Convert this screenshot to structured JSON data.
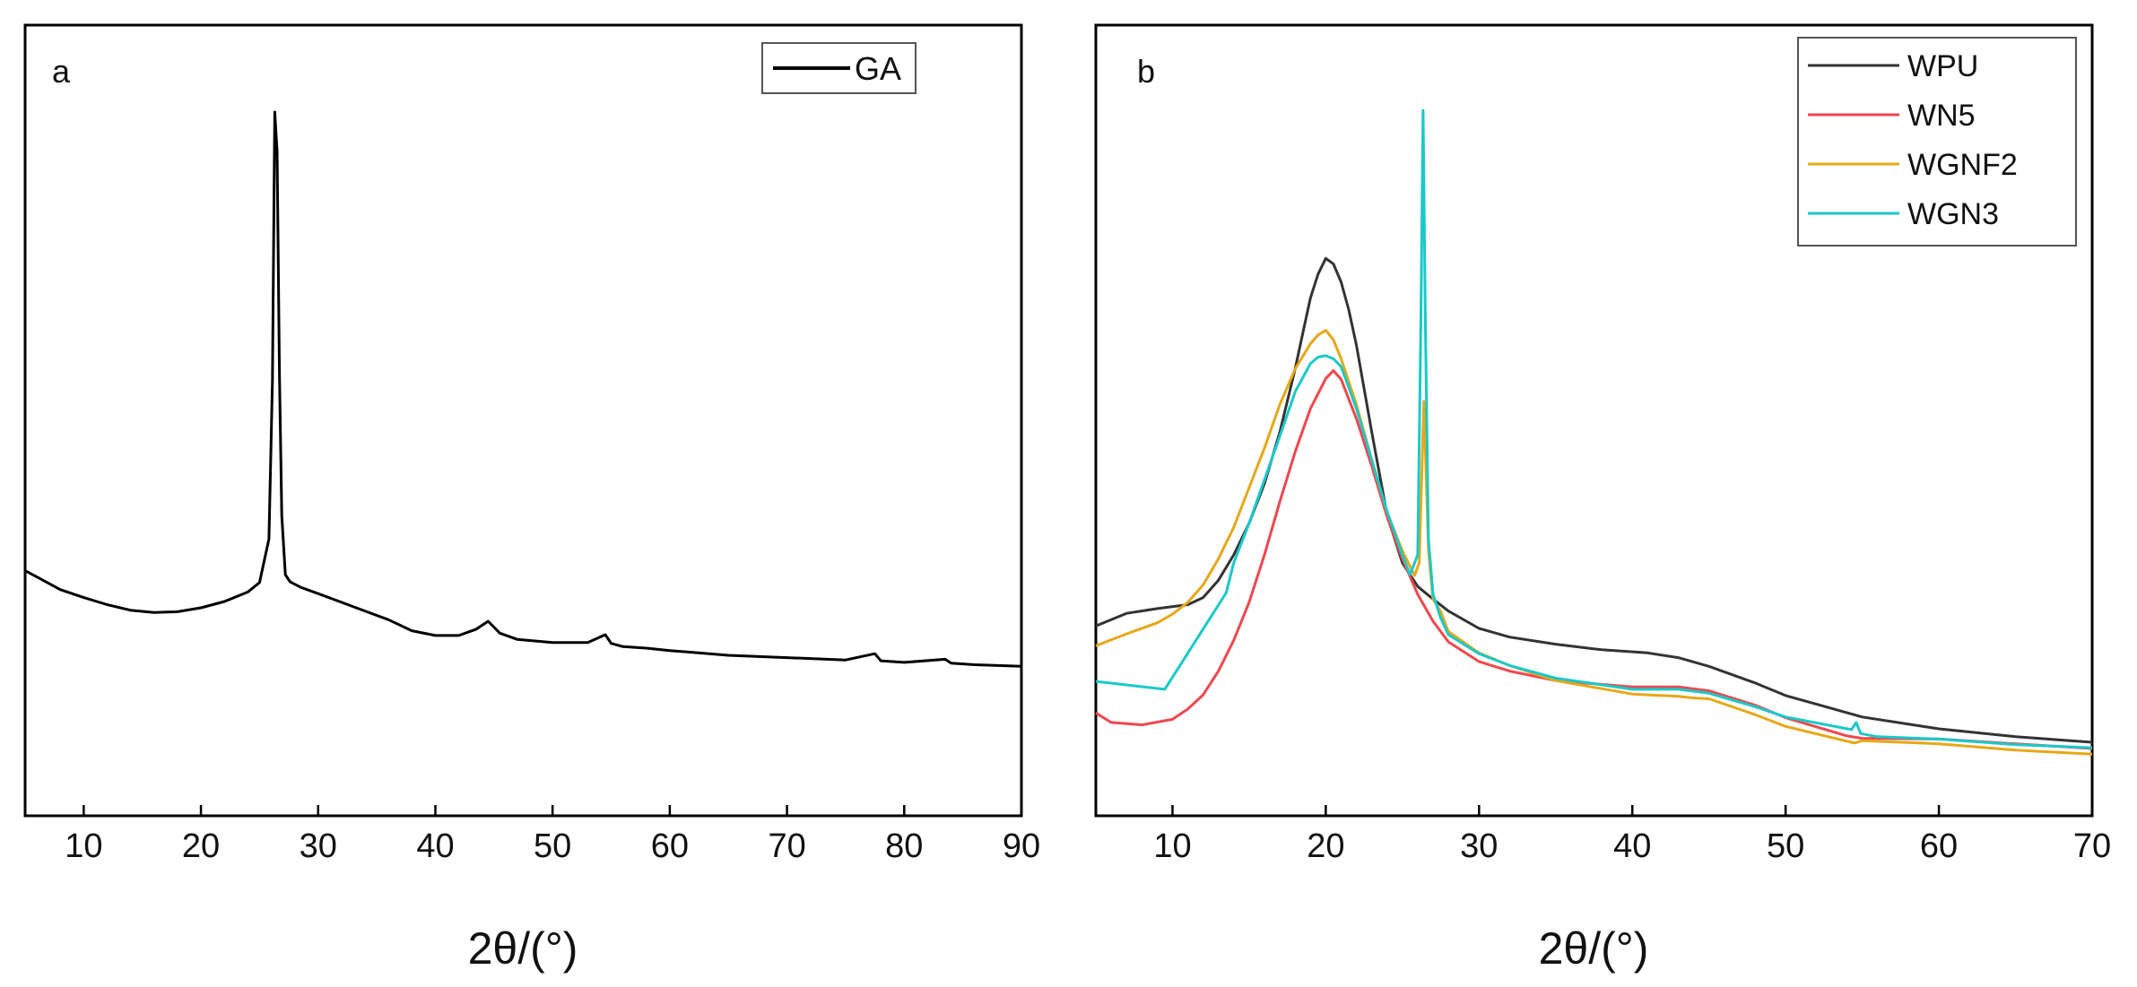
{
  "chart_data": [
    {
      "type": "line",
      "panel_label": "a",
      "title": "",
      "xlabel": "2θ/(°)",
      "ylabel": "",
      "xlim": [
        5,
        90
      ],
      "ylim": [
        0,
        100
      ],
      "xticks": [
        10,
        20,
        30,
        40,
        50,
        60,
        70,
        80,
        90
      ],
      "yticks": [],
      "grid": false,
      "legend_position": "top-right",
      "series": [
        {
          "name": "GA",
          "color": "#000000",
          "x": [
            5,
            6,
            8,
            10,
            12,
            14,
            16,
            18,
            20,
            22,
            24,
            25,
            25.8,
            26.1,
            26.3,
            26.5,
            26.7,
            26.9,
            27.2,
            27.6,
            28.5,
            30,
            32,
            34,
            36,
            38,
            40,
            42,
            43.5,
            44.5,
            45.5,
            47,
            50,
            53,
            54.5,
            55,
            56,
            58,
            60,
            65,
            70,
            75,
            77.5,
            78,
            80,
            83.5,
            84,
            86,
            88,
            90
          ],
          "y": [
            31,
            30.2,
            28.6,
            27.6,
            26.7,
            26,
            25.7,
            25.8,
            26.3,
            27.1,
            28.3,
            29.5,
            35,
            55,
            89,
            84,
            56,
            38,
            30.5,
            29.6,
            28.9,
            28.1,
            27,
            25.9,
            24.8,
            23.4,
            22.8,
            22.8,
            23.6,
            24.6,
            23.1,
            22.3,
            21.9,
            21.9,
            22.9,
            21.8,
            21.4,
            21.2,
            20.9,
            20.3,
            20,
            19.7,
            20.5,
            19.6,
            19.4,
            19.8,
            19.3,
            19.1,
            19,
            18.9
          ]
        }
      ]
    },
    {
      "type": "line",
      "panel_label": "b",
      "title": "",
      "xlabel": "2θ/(°)",
      "ylabel": "",
      "xlim": [
        5,
        70
      ],
      "ylim": [
        0,
        100
      ],
      "xticks": [
        10,
        20,
        30,
        40,
        50,
        60,
        70
      ],
      "yticks": [],
      "grid": false,
      "legend_position": "top-right",
      "series": [
        {
          "name": "WPU",
          "color": "#333333",
          "x": [
            5,
            7,
            9,
            11,
            12,
            13,
            14,
            15,
            16,
            17,
            18,
            18.5,
            19,
            19.5,
            20,
            20.5,
            21,
            21.5,
            22,
            23,
            24,
            25,
            26,
            27,
            28,
            30,
            32,
            35,
            38,
            41,
            43,
            45,
            48,
            50,
            55,
            60,
            65,
            70
          ],
          "y": [
            24,
            25.6,
            26.2,
            26.7,
            27.6,
            29.8,
            33,
            37,
            42,
            48.5,
            56.5,
            61,
            65.5,
            68.5,
            70.5,
            69.8,
            67.5,
            64,
            59.5,
            48.5,
            38,
            32,
            29,
            27.4,
            25.9,
            23.7,
            22.6,
            21.7,
            21,
            20.6,
            20,
            18.9,
            16.8,
            15.2,
            12.5,
            11,
            10,
            9.3
          ]
        },
        {
          "name": "WN5",
          "color": "#f0474f",
          "x": [
            5,
            6,
            8,
            10,
            11,
            12,
            13,
            14,
            15,
            16,
            17,
            18,
            19,
            20,
            20.5,
            21,
            22,
            23,
            24,
            25,
            26,
            27,
            28,
            30,
            32,
            35,
            40,
            43,
            45,
            48,
            50,
            54,
            55,
            60,
            65,
            70
          ],
          "y": [
            13,
            11.8,
            11.5,
            12.2,
            13.5,
            15.3,
            18.3,
            22.2,
            27,
            33,
            39.7,
            46,
            51.5,
            55.3,
            56.3,
            55.2,
            50.2,
            44.2,
            37.8,
            32.5,
            28,
            24.6,
            22,
            19.5,
            18.3,
            17.1,
            16.3,
            16.3,
            15.8,
            14,
            12.4,
            10.1,
            9.8,
            9.7,
            9.1,
            8.5
          ]
        },
        {
          "name": "WGNF2",
          "color": "#e6a817",
          "x": [
            5,
            7,
            9,
            10,
            11,
            12,
            13,
            14,
            15,
            16,
            17,
            18,
            19,
            19.5,
            20,
            20.5,
            21,
            22,
            23,
            24,
            25,
            25.8,
            26.1,
            26.4,
            26.7,
            27,
            27.5,
            28,
            30,
            32,
            35,
            40,
            43,
            44,
            45,
            48,
            50,
            54.5,
            55,
            60,
            65,
            70
          ],
          "y": [
            21.5,
            23,
            24.4,
            25.5,
            27,
            29.2,
            32.5,
            36.5,
            41.5,
            46.5,
            52,
            56.5,
            59.7,
            60.8,
            61.4,
            60.2,
            57.8,
            52,
            45,
            38.4,
            33.5,
            30.4,
            32,
            52.4,
            33.5,
            27.4,
            25.8,
            23.3,
            20.6,
            19,
            17.1,
            15.4,
            15.1,
            14.9,
            14.8,
            12.8,
            11.3,
            9.2,
            9.5,
            9.1,
            8.3,
            7.8
          ]
        },
        {
          "name": "WGN3",
          "color": "#19c9c9",
          "x": [
            5,
            9.5,
            13.5,
            14,
            15,
            16,
            17,
            18,
            19,
            19.5,
            20,
            20.5,
            21,
            22,
            23,
            24,
            25,
            25.5,
            26,
            26.2,
            26.35,
            26.5,
            26.7,
            27,
            27.5,
            28,
            30,
            32,
            35,
            40,
            43,
            45,
            48,
            50,
            54.3,
            54.6,
            54.9,
            56,
            60,
            65,
            70
          ],
          "y": [
            17,
            16,
            28.2,
            32,
            37,
            42.5,
            48,
            53.6,
            57.2,
            58,
            58.2,
            57.8,
            56.8,
            51.5,
            45,
            38.5,
            33,
            30.5,
            33,
            62,
            89.2,
            62,
            35,
            28,
            25,
            22.9,
            20.5,
            19,
            17.4,
            16,
            16,
            15.5,
            13.8,
            12.5,
            10.9,
            11.8,
            10.4,
            10,
            9.7,
            9,
            8.6
          ]
        }
      ]
    }
  ]
}
